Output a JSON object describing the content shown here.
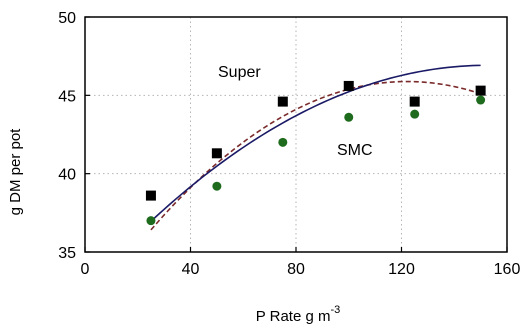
{
  "chart_data": {
    "type": "scatter",
    "title": "",
    "xlabel": "P Rate g m",
    "xlabel_superscript": "-3",
    "ylabel": "g DM per pot",
    "xlim": [
      0,
      160
    ],
    "ylim": [
      35,
      50
    ],
    "xticks": [
      0,
      40,
      80,
      120,
      160
    ],
    "yticks": [
      35,
      40,
      45,
      50
    ],
    "grid": true,
    "series": [
      {
        "name": "Super",
        "marker": "square",
        "marker_color": "#000000",
        "line_style": "dashed",
        "line_color": "#7a2a2a",
        "x": [
          25,
          50,
          75,
          100,
          125,
          150
        ],
        "y": [
          38.6,
          41.3,
          44.6,
          45.6,
          44.6,
          45.3
        ],
        "fit": [
          30.91,
          0.2452,
          -0.001004
        ]
      },
      {
        "name": "SMC",
        "marker": "circle",
        "marker_color": "#1e6b1e",
        "line_style": "solid",
        "line_color": "#1a1a66",
        "x": [
          25,
          50,
          75,
          100,
          125,
          150
        ],
        "y": [
          37.0,
          39.2,
          42.0,
          43.6,
          43.8,
          44.7
        ],
        "fit": [
          32.67,
          0.1869,
          -0.000613
        ]
      }
    ]
  }
}
